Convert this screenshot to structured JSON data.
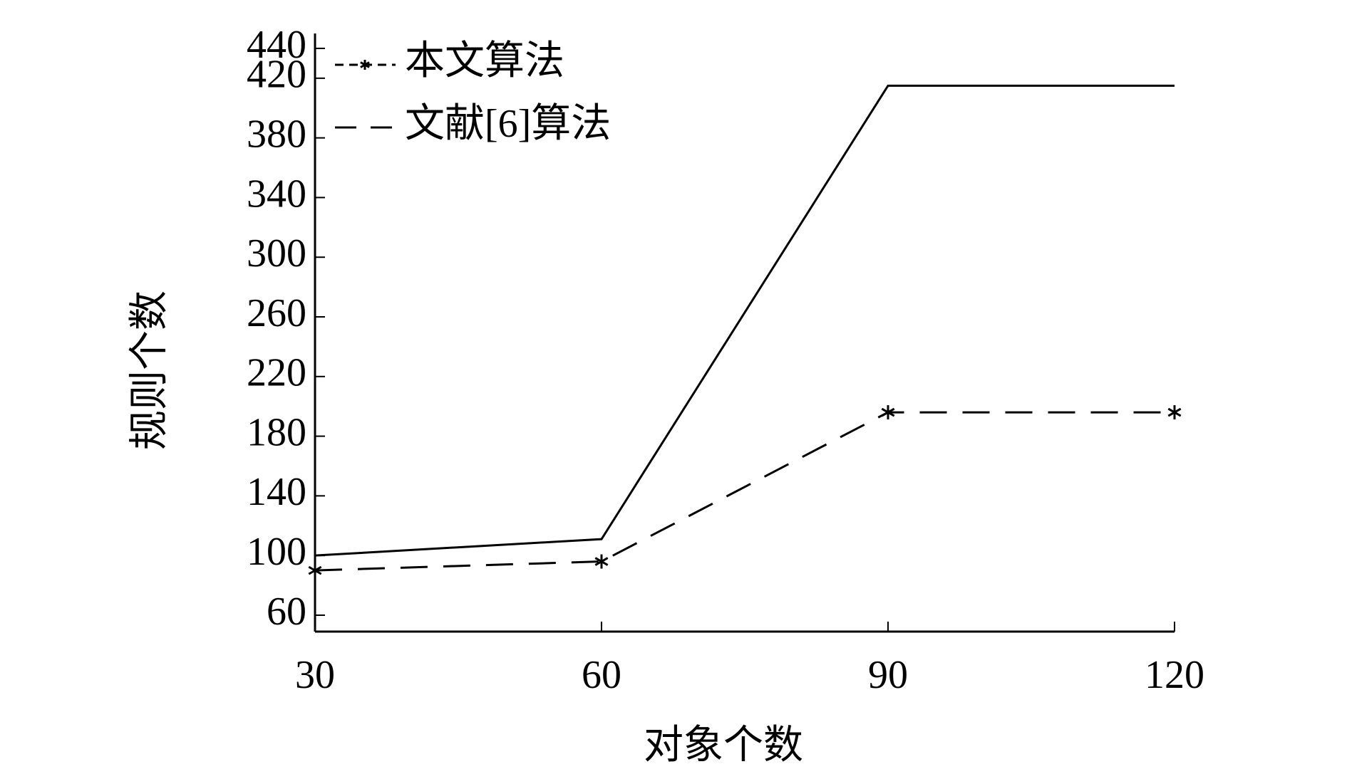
{
  "chart_data": {
    "type": "line",
    "x_label": "对象个数",
    "y_label": "规则个数",
    "x": [
      30,
      60,
      90,
      120
    ],
    "series": [
      {
        "name": "本文算法",
        "color": "#000000",
        "line_style": "dashed",
        "marker": "star",
        "values": [
          90,
          96,
          196,
          196
        ]
      },
      {
        "name": "文献[6]算法",
        "color": "#000000",
        "line_style": "solid",
        "values": [
          100,
          111,
          415,
          415
        ]
      }
    ],
    "xlim": [
      30,
      120
    ],
    "xticks": [
      30,
      60,
      90,
      120
    ],
    "ylim": [
      49,
      450
    ],
    "yticks": [
      60,
      100,
      140,
      180,
      220,
      260,
      300,
      340,
      380,
      420,
      440
    ],
    "grid": false,
    "legend": "upper left"
  }
}
